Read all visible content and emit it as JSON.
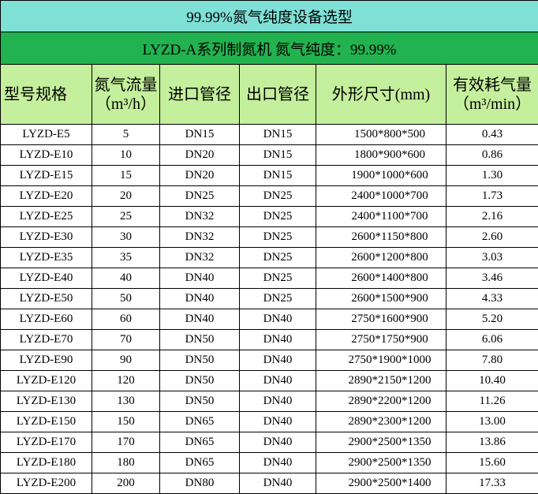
{
  "title": "99.99%氮气纯度设备选型",
  "subtitle": "LYZD-A系列制氮机 氮气纯度：99.99%",
  "table": {
    "header": [
      [
        "型号规格"
      ],
      [
        "氮气流量",
        "（m³/h）"
      ],
      [
        "进口管径"
      ],
      [
        "出口管径"
      ],
      [
        "外形尺寸(mm)"
      ],
      [
        "有效耗气量",
        "（m³/min）"
      ]
    ],
    "rows": [
      [
        "LYZD-E5",
        "5",
        "DN15",
        "DN15",
        "1500*800*500",
        "0.43"
      ],
      [
        "LYZD-E10",
        "10",
        "DN20",
        "DN15",
        "1800*900*600",
        "0.86"
      ],
      [
        "LYZD-E15",
        "15",
        "DN20",
        "DN15",
        "1900*1000*600",
        "1.30"
      ],
      [
        "LYZD-E20",
        "20",
        "DN25",
        "DN25",
        "2400*1000*700",
        "1.73"
      ],
      [
        "LYZD-E25",
        "25",
        "DN32",
        "DN25",
        "2400*1100*700",
        "2.16"
      ],
      [
        "LYZD-E30",
        "30",
        "DN32",
        "DN25",
        "2600*1150*800",
        "2.60"
      ],
      [
        "LYZD-E35",
        "35",
        "DN32",
        "DN25",
        "2600*1200*800",
        "3.03"
      ],
      [
        "LYZD-E40",
        "40",
        "DN40",
        "DN25",
        "2600*1400*800",
        "3.46"
      ],
      [
        "LYZD-E50",
        "50",
        "DN40",
        "DN25",
        "2600*1500*900",
        "4.33"
      ],
      [
        "LYZD-E60",
        "60",
        "DN40",
        "DN40",
        "2750*1600*900",
        "5.20"
      ],
      [
        "LYZD-E70",
        "70",
        "DN50",
        "DN40",
        "2750*1750*900",
        "6.06"
      ],
      [
        "LYZD-E90",
        "90",
        "DN50",
        "DN40",
        "2750*1900*1000",
        "7.80"
      ],
      [
        "LYZD-E120",
        "120",
        "DN50",
        "DN40",
        "2890*2150*1200",
        "10.40"
      ],
      [
        "LYZD-E130",
        "130",
        "DN50",
        "DN40",
        "2890*2200*1200",
        "11.26"
      ],
      [
        "LYZD-E150",
        "150",
        "DN65",
        "DN40",
        "2890*2300*1200",
        "13.00"
      ],
      [
        "LYZD-E170",
        "170",
        "DN65",
        "DN40",
        "2900*2500*1350",
        "13.86"
      ],
      [
        "LYZD-E180",
        "180",
        "DN65",
        "DN40",
        "2900*2500*1350",
        "15.60"
      ],
      [
        "LYZD-E200",
        "200",
        "DN80",
        "DN40",
        "2900*2500*1400",
        "17.33"
      ]
    ]
  }
}
